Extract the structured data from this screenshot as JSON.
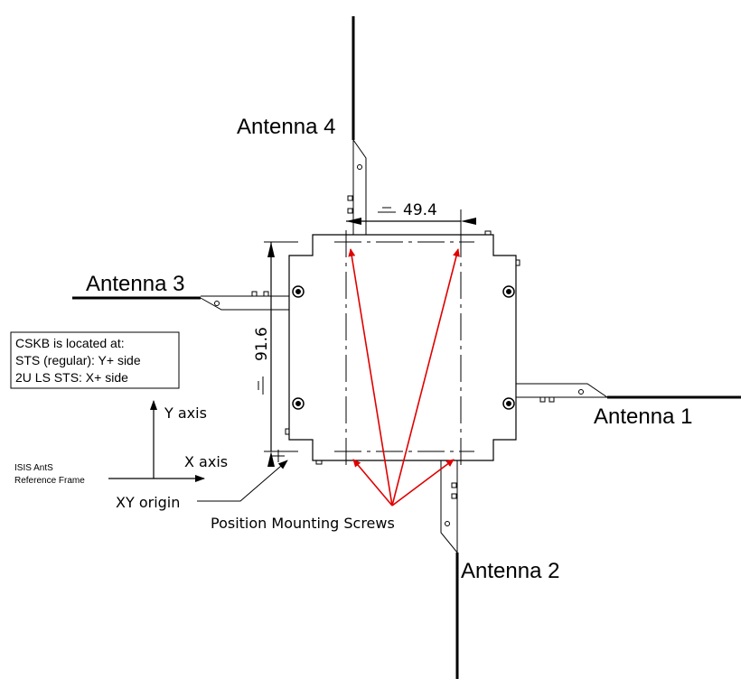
{
  "antennas": {
    "a1": "Antenna 1",
    "a2": "Antenna 2",
    "a3": "Antenna 3",
    "a4": "Antenna 4"
  },
  "dimensions": {
    "horizontal": "49.4",
    "vertical": "91.6"
  },
  "note_box": {
    "line1": "CSKB is located at:",
    "line2": "STS (regular): Y+ side",
    "line3": "2U LS STS: X+ side"
  },
  "axes": {
    "y_label": "Y axis",
    "x_label": "X axis",
    "frame_line1": "ISIS AntS",
    "frame_line2": "Reference Frame",
    "origin_label": "XY origin"
  },
  "callout": "Position Mounting Screws",
  "colors": {
    "line": "#000000",
    "arrow": "#e00000"
  }
}
